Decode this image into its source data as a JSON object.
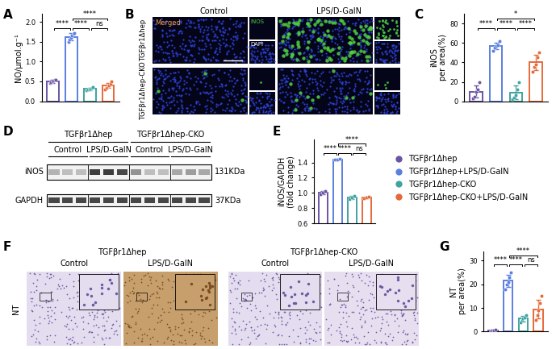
{
  "chart_data": [
    {
      "panel": "A",
      "type": "bar",
      "y_label": "NO/μmol.g⁻¹",
      "categories": [
        null,
        null,
        null,
        null
      ],
      "values": [
        0.5,
        1.62,
        0.31,
        0.39
      ],
      "errors": [
        0.04,
        0.09,
        0.03,
        0.06
      ],
      "points": [
        [
          0.45,
          0.48,
          0.5,
          0.52,
          0.53,
          0.55
        ],
        [
          1.5,
          1.55,
          1.6,
          1.65,
          1.7,
          1.72
        ],
        [
          0.28,
          0.29,
          0.3,
          0.32,
          0.33,
          0.35
        ],
        [
          0.3,
          0.34,
          0.37,
          0.4,
          0.43,
          0.5
        ]
      ],
      "colors": [
        "#6b54a3",
        "#5b7fe0",
        "#3fa3a0",
        "#e56a3a"
      ],
      "ylim": [
        0,
        2.2
      ],
      "yticks": [
        {
          "value": 0,
          "label": "0.0"
        },
        {
          "value": 0.5,
          "label": "0.5"
        },
        {
          "value": 1.0,
          "label": "1.0"
        },
        {
          "value": 1.5,
          "label": "1.5"
        },
        {
          "value": 2.0,
          "label": "2.0"
        }
      ],
      "tick_labels": "y",
      "annotations": [
        {
          "from": 0,
          "to": 1,
          "label": "****"
        },
        {
          "from": 1,
          "to": 2,
          "label": "****"
        },
        {
          "from": 2,
          "to": 3,
          "label": "ns"
        },
        {
          "from": 1,
          "to": 3,
          "label": "****"
        }
      ]
    },
    {
      "panel": "C",
      "type": "bar",
      "y_label": "iNOS\nper area(%)",
      "categories": [
        null,
        null,
        null,
        null
      ],
      "values": [
        10,
        57,
        9,
        40
      ],
      "errors": [
        6,
        3,
        7,
        8
      ],
      "points": [
        [
          3,
          5,
          10,
          12,
          20
        ],
        [
          52,
          55,
          57,
          58,
          62
        ],
        [
          2,
          4,
          6,
          12,
          20
        ],
        [
          30,
          35,
          38,
          45,
          50
        ]
      ],
      "colors": [
        "#6b54a3",
        "#5b7fe0",
        "#3fa3a0",
        "#e56a3a"
      ],
      "ylim": [
        0,
        90
      ],
      "yticks": [
        0,
        20,
        40,
        60,
        80
      ],
      "tick_labels": "y",
      "annotations": [
        {
          "from": 0,
          "to": 1,
          "label": "****"
        },
        {
          "from": 1,
          "to": 2,
          "label": "****"
        },
        {
          "from": 2,
          "to": 3,
          "label": "****"
        },
        {
          "from": 1,
          "to": 3,
          "label": "*"
        }
      ]
    },
    {
      "panel": "E",
      "type": "bar",
      "y_label": "iNOS/GAPDH\n(fold change)",
      "categories": [
        null,
        null,
        null,
        null
      ],
      "values": [
        1.0,
        1.44,
        0.94,
        0.94
      ],
      "errors": [
        0.02,
        0.005,
        0.02,
        0.01
      ],
      "points": [
        [
          0.98,
          1.0,
          1.02
        ],
        [
          1.44,
          1.44,
          1.45
        ],
        [
          0.92,
          0.94,
          0.96
        ],
        [
          0.93,
          0.94,
          0.95
        ]
      ],
      "colors": [
        "#6b54a3",
        "#5b7fe0",
        "#3fa3a0",
        "#e56a3a"
      ],
      "ylim": [
        0.6,
        1.7
      ],
      "yticks": [
        {
          "value": 0.6,
          "label": "0.6"
        },
        {
          "value": 0.8,
          "label": "0.8"
        },
        {
          "value": 1.0,
          "label": "1.0"
        },
        {
          "value": 1.2,
          "label": "1.2"
        },
        {
          "value": 1.4,
          "label": "1.4"
        }
      ],
      "tick_labels": "y",
      "annotations": [
        {
          "from": 0,
          "to": 1,
          "label": "****"
        },
        {
          "from": 1,
          "to": 2,
          "label": "****"
        },
        {
          "from": 2,
          "to": 3,
          "label": "ns"
        },
        {
          "from": 1,
          "to": 3,
          "label": "****"
        }
      ]
    },
    {
      "panel": "G",
      "type": "bar",
      "y_label": "NT\nper area(%)",
      "categories": [
        null,
        null,
        null,
        null
      ],
      "values": [
        0.5,
        21.5,
        5.5,
        9.5
      ],
      "errors": [
        0.3,
        2.5,
        1.2,
        4
      ],
      "points": [
        [
          0.2,
          0.4,
          0.5,
          0.6,
          0.8
        ],
        [
          18,
          20,
          21,
          23,
          25
        ],
        [
          4,
          5,
          5.5,
          6,
          7
        ],
        [
          5,
          7,
          9,
          12,
          15
        ]
      ],
      "colors": [
        "#6b54a3",
        "#5b7fe0",
        "#3fa3a0",
        "#e56a3a"
      ],
      "ylim": [
        0,
        34
      ],
      "yticks": [
        0,
        10,
        20,
        30
      ],
      "tick_labels": "y",
      "annotations": [
        {
          "from": 0,
          "to": 1,
          "label": "****"
        },
        {
          "from": 1,
          "to": 2,
          "label": "****"
        },
        {
          "from": 2,
          "to": 3,
          "label": "ns"
        },
        {
          "from": 1,
          "to": 3,
          "label": "****"
        }
      ]
    }
  ],
  "legend": {
    "loc": "center left",
    "entries": [
      {
        "name": "TGFβr1Δhep",
        "color": "#6b54a3"
      },
      {
        "name": "TGFβr1Δhep+LPS/D-GalN",
        "color": "#5b7fe0"
      },
      {
        "name": "TGFβr1Δhep-CKO",
        "color": "#3fa3a0"
      },
      {
        "name": "TGFβr1Δhep-CKO+LPS/D-GalN",
        "color": "#e56a3a"
      }
    ]
  },
  "panels": {
    "B": {
      "panel": "B",
      "col_headers": [
        "Control",
        "LPS/D-GalN"
      ],
      "row_headers": [
        "TGFβr1Δhep",
        "TGFβr1Δhep-CKO"
      ],
      "channel_labels": [
        "Merged",
        "iNOS",
        "DAPI"
      ]
    },
    "D": {
      "panel": "D",
      "group_headers": [
        "TGFβr1Δhep",
        "TGFβr1Δhep-CKO"
      ],
      "condition_headers": [
        "Control",
        "LPS/D-GalN",
        "Control",
        "LPS/D-GalN"
      ],
      "rows": [
        {
          "protein": "iNOS",
          "size": "131KDa"
        },
        {
          "protein": "GAPDH",
          "size": "37KDa"
        }
      ]
    },
    "F": {
      "panel": "F",
      "group_headers": [
        "TGFβr1Δhep",
        "TGFβr1Δhep-CKO"
      ],
      "condition_headers": [
        "Control",
        "LPS/D-GalN",
        "Control",
        "LPS/D-GalN"
      ],
      "stain": "NT"
    }
  }
}
